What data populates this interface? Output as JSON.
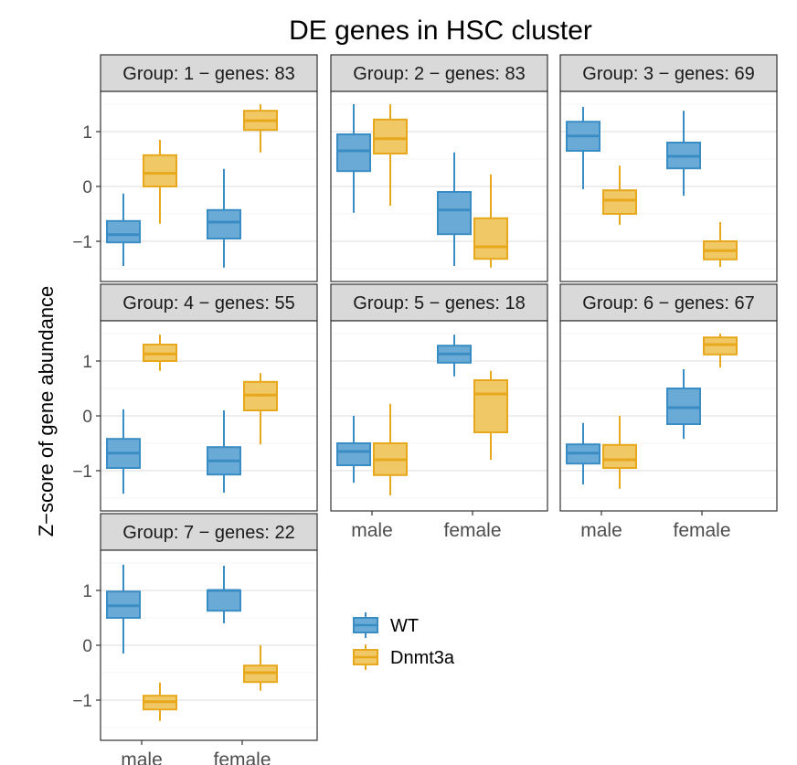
{
  "chart_data": {
    "type": "boxplot",
    "title": "DE genes in HSC cluster",
    "ylabel": "Z−score of gene abundance",
    "xlabel": "",
    "categories": [
      "male",
      "female"
    ],
    "ylim": [
      -1.6,
      1.6
    ],
    "yticks": [
      -1,
      0,
      1
    ],
    "ytick_labels": [
      "−1",
      "0",
      "1"
    ],
    "series_colors": {
      "WT": "#3a8dc4",
      "Dnmt3a": "#e8a81c"
    },
    "series_fill": {
      "WT": "#6aaad6",
      "Dnmt3a": "#f0c866"
    },
    "legend": {
      "position": "bottom-right",
      "entries": [
        "WT",
        "Dnmt3a"
      ]
    },
    "panels": [
      {
        "label": "Group:  1 − genes: 83",
        "boxes": [
          {
            "category": "male",
            "series": "WT",
            "min": -1.45,
            "q1": -1.02,
            "median": -0.88,
            "q3": -0.63,
            "max": -0.13
          },
          {
            "category": "male",
            "series": "Dnmt3a",
            "min": -0.68,
            "q1": 0.0,
            "median": 0.24,
            "q3": 0.57,
            "max": 0.85
          },
          {
            "category": "female",
            "series": "WT",
            "min": -1.48,
            "q1": -0.95,
            "median": -0.65,
            "q3": -0.43,
            "max": 0.32
          },
          {
            "category": "female",
            "series": "Dnmt3a",
            "min": 0.62,
            "q1": 1.03,
            "median": 1.2,
            "q3": 1.38,
            "max": 1.5
          }
        ]
      },
      {
        "label": "Group:  2 − genes: 83",
        "boxes": [
          {
            "category": "male",
            "series": "WT",
            "min": -0.48,
            "q1": 0.28,
            "median": 0.65,
            "q3": 0.95,
            "max": 1.5
          },
          {
            "category": "male",
            "series": "Dnmt3a",
            "min": -0.35,
            "q1": 0.6,
            "median": 0.87,
            "q3": 1.22,
            "max": 1.5
          },
          {
            "category": "female",
            "series": "WT",
            "min": -1.45,
            "q1": -0.87,
            "median": -0.43,
            "q3": -0.1,
            "max": 0.62
          },
          {
            "category": "female",
            "series": "Dnmt3a",
            "min": -1.48,
            "q1": -1.32,
            "median": -1.1,
            "q3": -0.58,
            "max": 0.22
          }
        ]
      },
      {
        "label": "Group:  3 − genes: 69",
        "boxes": [
          {
            "category": "male",
            "series": "WT",
            "min": -0.05,
            "q1": 0.65,
            "median": 0.92,
            "q3": 1.18,
            "max": 1.45
          },
          {
            "category": "male",
            "series": "Dnmt3a",
            "min": -0.7,
            "q1": -0.5,
            "median": -0.25,
            "q3": -0.07,
            "max": 0.38
          },
          {
            "category": "female",
            "series": "WT",
            "min": -0.17,
            "q1": 0.33,
            "median": 0.55,
            "q3": 0.8,
            "max": 1.38
          },
          {
            "category": "female",
            "series": "Dnmt3a",
            "min": -1.47,
            "q1": -1.33,
            "median": -1.17,
            "q3": -1.0,
            "max": -0.65
          }
        ]
      },
      {
        "label": "Group:  4 − genes: 55",
        "boxes": [
          {
            "category": "male",
            "series": "WT",
            "min": -1.42,
            "q1": -0.95,
            "median": -0.68,
            "q3": -0.42,
            "max": 0.12
          },
          {
            "category": "male",
            "series": "Dnmt3a",
            "min": 0.82,
            "q1": 1.0,
            "median": 1.13,
            "q3": 1.3,
            "max": 1.48
          },
          {
            "category": "female",
            "series": "WT",
            "min": -1.4,
            "q1": -1.07,
            "median": -0.82,
            "q3": -0.57,
            "max": 0.1
          },
          {
            "category": "female",
            "series": "Dnmt3a",
            "min": -0.52,
            "q1": 0.1,
            "median": 0.38,
            "q3": 0.62,
            "max": 0.78
          }
        ]
      },
      {
        "label": "Group:  5 − genes: 18",
        "boxes": [
          {
            "category": "male",
            "series": "WT",
            "min": -1.22,
            "q1": -0.9,
            "median": -0.65,
            "q3": -0.5,
            "max": 0.0
          },
          {
            "category": "male",
            "series": "Dnmt3a",
            "min": -1.45,
            "q1": -1.08,
            "median": -0.8,
            "q3": -0.5,
            "max": 0.22
          },
          {
            "category": "female",
            "series": "WT",
            "min": 0.72,
            "q1": 0.97,
            "median": 1.13,
            "q3": 1.28,
            "max": 1.48
          },
          {
            "category": "female",
            "series": "Dnmt3a",
            "min": -0.8,
            "q1": -0.3,
            "median": 0.4,
            "q3": 0.65,
            "max": 0.82
          }
        ]
      },
      {
        "label": "Group:  6 − genes: 67",
        "boxes": [
          {
            "category": "male",
            "series": "WT",
            "min": -1.25,
            "q1": -0.87,
            "median": -0.68,
            "q3": -0.52,
            "max": -0.13
          },
          {
            "category": "male",
            "series": "Dnmt3a",
            "min": -1.33,
            "q1": -0.95,
            "median": -0.8,
            "q3": -0.53,
            "max": 0.0
          },
          {
            "category": "female",
            "series": "WT",
            "min": -0.42,
            "q1": -0.15,
            "median": 0.15,
            "q3": 0.5,
            "max": 0.85
          },
          {
            "category": "female",
            "series": "Dnmt3a",
            "min": 0.88,
            "q1": 1.12,
            "median": 1.3,
            "q3": 1.43,
            "max": 1.5
          }
        ]
      },
      {
        "label": "Group:  7 − genes: 22",
        "boxes": [
          {
            "category": "male",
            "series": "WT",
            "min": -0.15,
            "q1": 0.5,
            "median": 0.72,
            "q3": 0.98,
            "max": 1.47
          },
          {
            "category": "male",
            "series": "Dnmt3a",
            "min": -1.38,
            "q1": -1.17,
            "median": -1.03,
            "q3": -0.92,
            "max": -0.68
          },
          {
            "category": "female",
            "series": "WT",
            "min": 0.4,
            "q1": 0.63,
            "median": 1.0,
            "q3": 1.0,
            "max": 1.45
          },
          {
            "category": "female",
            "series": "Dnmt3a",
            "min": -0.83,
            "q1": -0.67,
            "median": -0.5,
            "q3": -0.37,
            "max": 0.0
          }
        ]
      }
    ]
  }
}
